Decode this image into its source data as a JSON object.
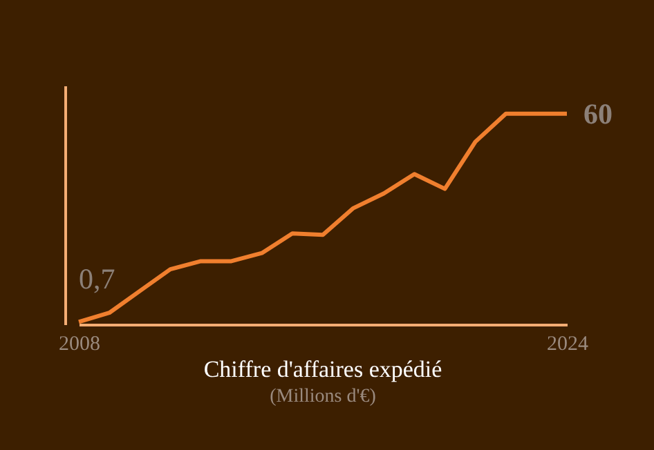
{
  "chart_data": {
    "type": "line",
    "title": "Chiffre d'affaires expédié",
    "subtitle": "(Millions d'€)",
    "categories": [
      "2008",
      null,
      null,
      null,
      null,
      null,
      null,
      null,
      null,
      null,
      null,
      null,
      null,
      null,
      null,
      null,
      "2024"
    ],
    "series": [
      {
        "color": "#f07f2e",
        "values": [
          0.7,
          3.3,
          9.5,
          15.7,
          18.0,
          18.0,
          20.3,
          25.9,
          25.5,
          33.1,
          37.3,
          42.8,
          38.6,
          52.0,
          60,
          60,
          60
        ],
        "value_labels": [
          "0,7",
          null,
          null,
          null,
          null,
          null,
          null,
          null,
          null,
          null,
          null,
          null,
          null,
          null,
          null,
          null,
          "60"
        ]
      }
    ],
    "ylim": [
      0,
      68
    ],
    "tick_labels": "x",
    "marker": "none",
    "line_style": "solid"
  }
}
